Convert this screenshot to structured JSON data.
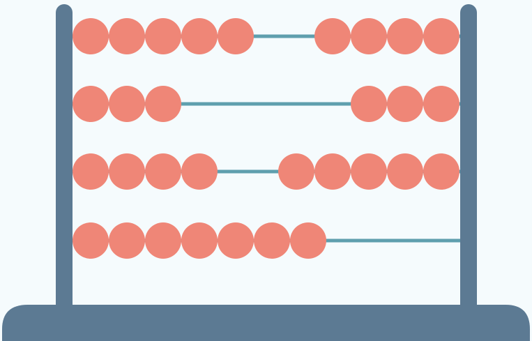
{
  "colors": {
    "background": "#f5fbfd",
    "frame": "#5c7a93",
    "rod": "#5f9fae",
    "bead": "#ef8677"
  },
  "abacus": {
    "rows": [
      {
        "left_beads": 5,
        "right_beads": 4
      },
      {
        "left_beads": 3,
        "right_beads": 3
      },
      {
        "left_beads": 4,
        "right_beads": 5
      },
      {
        "left_beads": 7,
        "right_beads": 0
      }
    ]
  }
}
